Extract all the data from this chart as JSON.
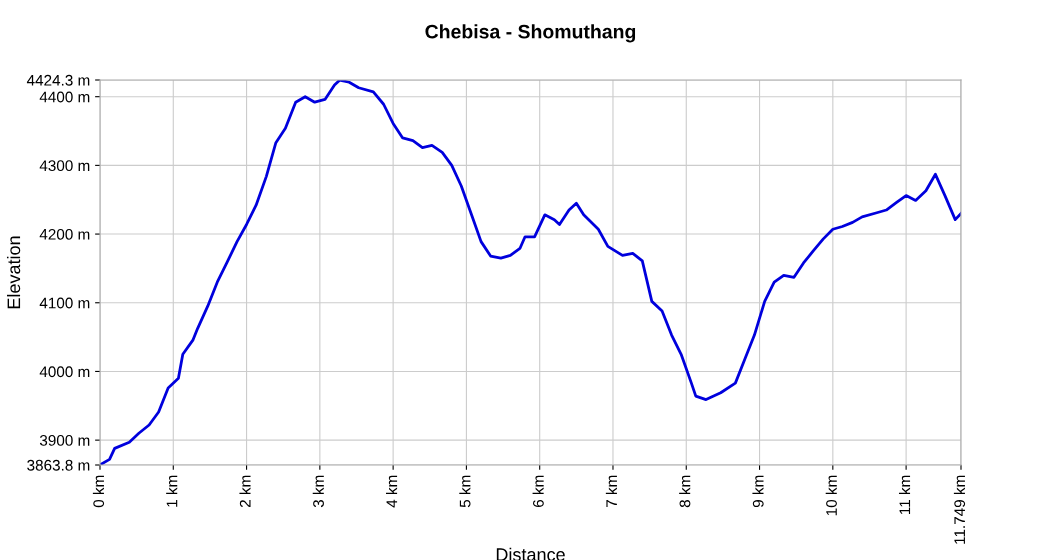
{
  "chart_data": {
    "type": "line",
    "title": "Chebisa - Shomuthang",
    "xlabel": "Distance",
    "ylabel": "Elevation",
    "xlim": [
      0,
      11.749
    ],
    "ylim": [
      3863.8,
      4424.3
    ],
    "xticks": [
      {
        "value": 0,
        "label": "0 km"
      },
      {
        "value": 1,
        "label": "1 km"
      },
      {
        "value": 2,
        "label": "2 km"
      },
      {
        "value": 3,
        "label": "3 km"
      },
      {
        "value": 4,
        "label": "4 km"
      },
      {
        "value": 5,
        "label": "5 km"
      },
      {
        "value": 6,
        "label": "6 km"
      },
      {
        "value": 7,
        "label": "7 km"
      },
      {
        "value": 8,
        "label": "8 km"
      },
      {
        "value": 9,
        "label": "9 km"
      },
      {
        "value": 10,
        "label": "10 km"
      },
      {
        "value": 11,
        "label": "11 km"
      },
      {
        "value": 11.749,
        "label": "11.749 km"
      }
    ],
    "yticks": [
      {
        "value": 3863.8,
        "label": "3863.8 m"
      },
      {
        "value": 3900,
        "label": "3900 m"
      },
      {
        "value": 4000,
        "label": "4000 m"
      },
      {
        "value": 4100,
        "label": "4100 m"
      },
      {
        "value": 4200,
        "label": "4200 m"
      },
      {
        "value": 4300,
        "label": "4300 m"
      },
      {
        "value": 4400,
        "label": "4400 m"
      },
      {
        "value": 4424.3,
        "label": "4424.3 m"
      }
    ],
    "grid": true,
    "legend": false,
    "marker": "none",
    "line_style": "solid",
    "x": [
      0,
      0.13,
      0.2,
      0.4,
      0.53,
      0.67,
      0.8,
      0.93,
      1.07,
      1.13,
      1.27,
      1.33,
      1.47,
      1.6,
      1.73,
      1.87,
      2.0,
      2.13,
      2.27,
      2.4,
      2.53,
      2.67,
      2.8,
      2.93,
      3.07,
      3.2,
      3.27,
      3.4,
      3.53,
      3.73,
      3.87,
      4.0,
      4.13,
      4.27,
      4.4,
      4.53,
      4.67,
      4.8,
      4.93,
      5.07,
      5.2,
      5.33,
      5.47,
      5.6,
      5.73,
      5.8,
      5.93,
      6.07,
      6.2,
      6.27,
      6.4,
      6.5,
      6.6,
      6.8,
      6.93,
      7.13,
      7.27,
      7.4,
      7.53,
      7.67,
      7.8,
      7.93,
      8.07,
      8.13,
      8.27,
      8.47,
      8.67,
      8.8,
      8.93,
      9.07,
      9.2,
      9.33,
      9.47,
      9.6,
      9.73,
      9.87,
      10.0,
      10.13,
      10.27,
      10.4,
      10.6,
      10.73,
      10.87,
      11.0,
      11.13,
      11.27,
      11.4,
      11.53,
      11.67,
      11.749
    ],
    "series": [
      {
        "color": "#0000dd",
        "values": [
          3864,
          3872,
          3888,
          3897,
          3910,
          3922,
          3941,
          3976,
          3990,
          4025,
          4046,
          4062,
          4095,
          4130,
          4158,
          4189,
          4214,
          4242,
          4284,
          4333,
          4354,
          4392,
          4400,
          4392,
          4396,
          4417,
          4424,
          4421,
          4413,
          4407,
          4389,
          4361,
          4340,
          4336,
          4326,
          4329,
          4319,
          4300,
          4270,
          4228,
          4189,
          4168,
          4165,
          4169,
          4179,
          4196,
          4196,
          4228,
          4221,
          4214,
          4235,
          4245,
          4228,
          4207,
          4182,
          4169,
          4172,
          4161,
          4102,
          4088,
          4053,
          4025,
          3983,
          3964,
          3959,
          3969,
          3983,
          4018,
          4053,
          4102,
          4130,
          4140,
          4137,
          4158,
          4175,
          4193,
          4207,
          4211,
          4217,
          4225,
          4231,
          4235,
          4246,
          4256,
          4249,
          4263,
          4287,
          4256,
          4221,
          4230
        ]
      }
    ]
  }
}
